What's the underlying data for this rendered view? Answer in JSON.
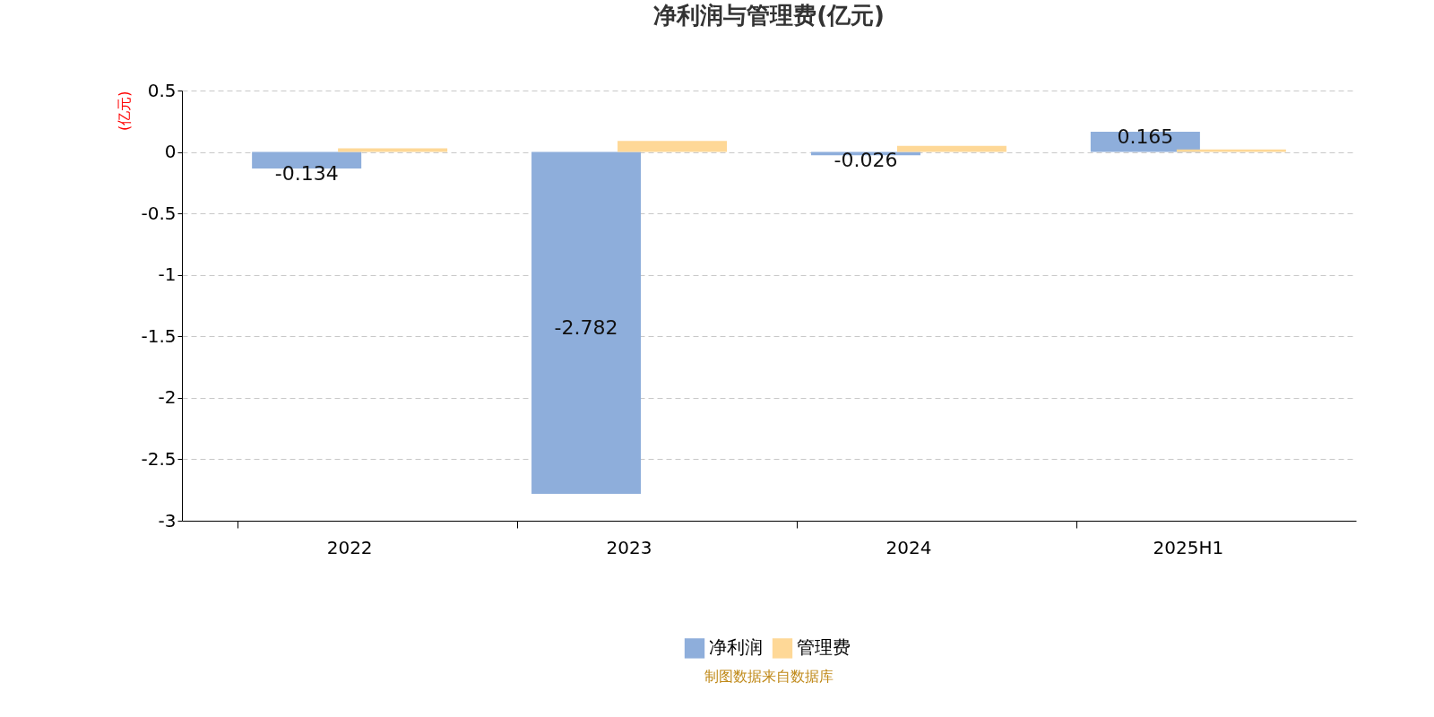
{
  "chart_data": {
    "type": "bar",
    "title": "净利润与管理费(亿元)",
    "ylabel": "(亿元)",
    "categories": [
      "2022",
      "2023",
      "2024",
      "2025H1"
    ],
    "series": [
      {
        "name": "净利润",
        "color": "#8eaedb",
        "values": [
          -0.134,
          -2.782,
          -0.026,
          0.165
        ],
        "value_labels": [
          "-0.134",
          "-2.782",
          "-0.026",
          "0.165"
        ]
      },
      {
        "name": "管理费",
        "color": "#fed897",
        "values": [
          0.03,
          0.09,
          0.05,
          0.02
        ]
      }
    ],
    "ylim": [
      -3,
      0.5
    ],
    "yticks": [
      0.5,
      0,
      -0.5,
      -1,
      -1.5,
      -2,
      -2.5,
      -3
    ],
    "grid": "y",
    "legend": "bottom",
    "annotations": [
      "制图数据来自数据库"
    ]
  }
}
